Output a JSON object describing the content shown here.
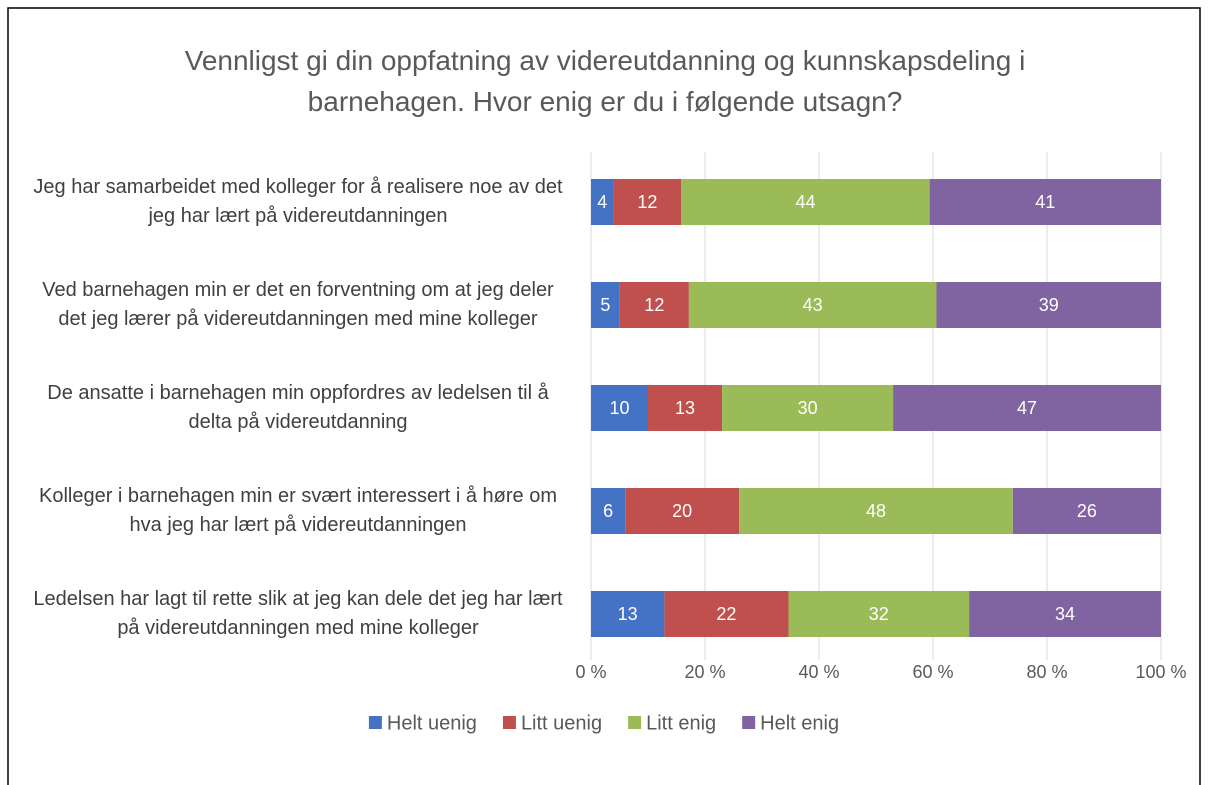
{
  "chart_data": {
    "type": "bar",
    "orientation": "horizontal",
    "stacked": "percent",
    "title": "Vennligst gi din oppfatning av videreutdanning og kunnskapsdeling i barnehagen. Hvor enig er du i følgende utsagn?",
    "categories": [
      "Jeg har samarbeidet med kolleger for å realisere noe av det jeg har lært på videreutdanningen",
      "Ved barnehagen min er det en forventning om at jeg deler det jeg lærer på videreutdanningen med mine kolleger",
      "De ansatte i barnehagen min oppfordres av ledelsen til å delta på videreutdanning",
      "Kolleger i barnehagen min er svært interessert i å høre om hva jeg har lært på videreutdanningen",
      "Ledelsen har lagt til rette slik at jeg kan dele det jeg har lært på videreutdanningen med mine kolleger"
    ],
    "series": [
      {
        "name": "Helt uenig",
        "color": "#4472c4",
        "values": [
          4,
          5,
          10,
          6,
          13
        ]
      },
      {
        "name": "Litt uenig",
        "color": "#c0504d",
        "values": [
          12,
          12,
          13,
          20,
          22
        ]
      },
      {
        "name": "Litt enig",
        "color": "#9bbb59",
        "values": [
          44,
          43,
          30,
          48,
          32
        ]
      },
      {
        "name": "Helt enig",
        "color": "#8064a2",
        "values": [
          41,
          39,
          47,
          26,
          34
        ]
      }
    ],
    "xlim": [
      0,
      100
    ],
    "xticks": [
      {
        "value": 0,
        "label": "0 %"
      },
      {
        "value": 20,
        "label": "20 %"
      },
      {
        "value": 40,
        "label": "40 %"
      },
      {
        "value": 60,
        "label": "60 %"
      },
      {
        "value": 80,
        "label": "80 %"
      },
      {
        "value": 100,
        "label": "100 %"
      }
    ],
    "grid": true,
    "legend": "bottom"
  }
}
